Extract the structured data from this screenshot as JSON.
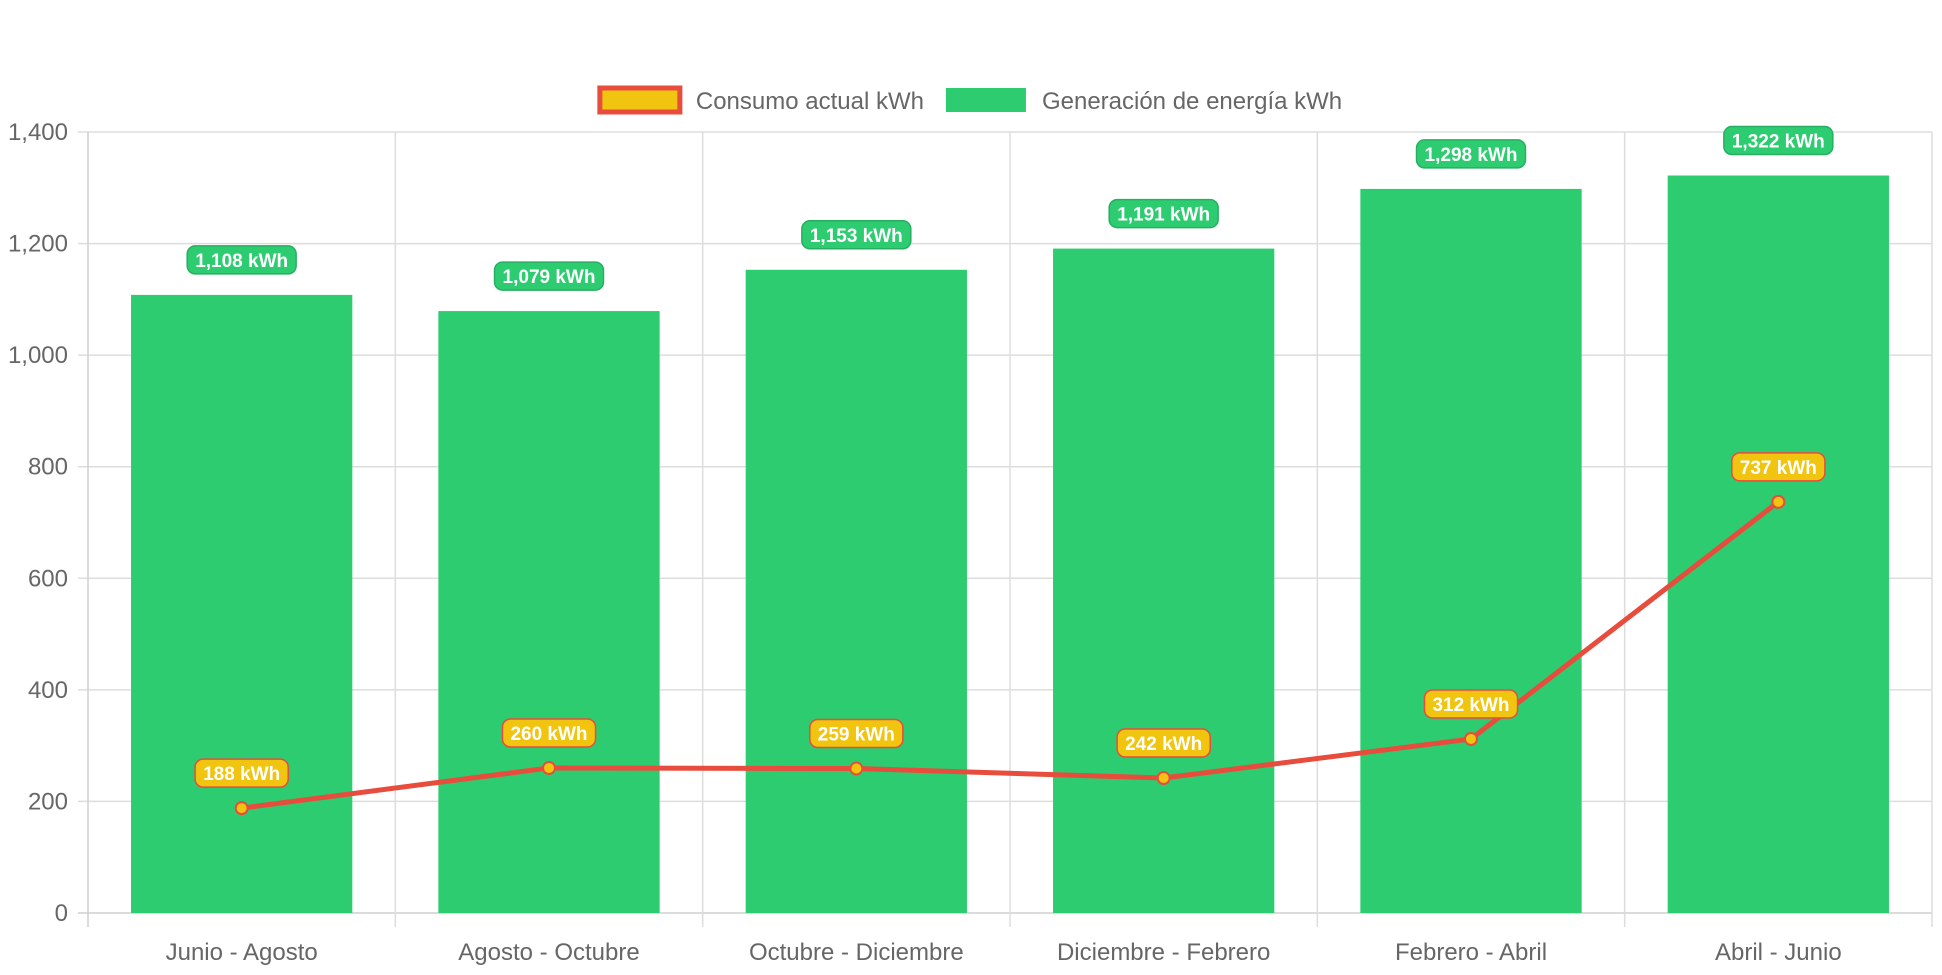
{
  "chart_data": {
    "type": "bar",
    "categories": [
      "Junio - Agosto",
      "Agosto - Octubre",
      "Octubre - Diciembre",
      "Diciembre - Febrero",
      "Febrero - Abril",
      "Abril - Junio"
    ],
    "series": [
      {
        "name": "Consumo actual kWh",
        "type": "line",
        "values": [
          188,
          260,
          259,
          242,
          312,
          737
        ],
        "labels": [
          "188 kWh",
          "260 kWh",
          "259 kWh",
          "242 kWh",
          "312 kWh",
          "737 kWh"
        ],
        "color": "#E74C3C",
        "fill": "#F1C40F"
      },
      {
        "name": "Generación de energía kWh",
        "type": "bar",
        "values": [
          1108,
          1079,
          1153,
          1191,
          1298,
          1322
        ],
        "labels": [
          "1,108 kWh",
          "1,079 kWh",
          "1,153 kWh",
          "1,191 kWh",
          "1,298 kWh",
          "1,322 kWh"
        ],
        "color": "#2ECC71",
        "border": "#27AE60"
      }
    ],
    "y_ticks": [
      "0",
      "200",
      "400",
      "600",
      "800",
      "1,000",
      "1,200",
      "1,400"
    ],
    "ylim": [
      0,
      1400
    ],
    "y_step": 200,
    "grid": true,
    "legend_position": "top-center"
  }
}
